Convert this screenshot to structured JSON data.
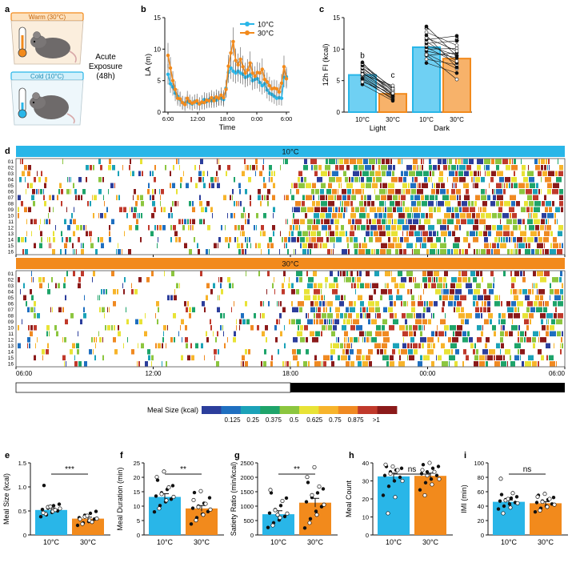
{
  "colors": {
    "cold": "#29b6e8",
    "warm": "#f28a1c",
    "cold_light": "#6fd0f3",
    "warm_light": "#f7b26a",
    "raster_bar_cold": "#29b6e8",
    "raster_bar_warm": "#f28a1c"
  },
  "panels": {
    "a": "a",
    "b": "b",
    "c": "c",
    "d": "d",
    "e": "e",
    "f": "f",
    "g": "g",
    "h": "h",
    "i": "i"
  },
  "panel_a": {
    "warm_label": "Warm (30°C)",
    "cold_label": "Cold (10°C)",
    "exposure_line1": "Acute",
    "exposure_line2": "Exposure",
    "exposure_line3": "(48h)"
  },
  "chart_data": [
    {
      "id": "b",
      "type": "line",
      "xlabel": "Time",
      "ylabel": "LA (m)",
      "ylim": [
        0,
        15
      ],
      "yticks": [
        "0",
        "5",
        "10",
        "15"
      ],
      "xticks": [
        "6:00",
        "12:00",
        "18:00",
        "0:00",
        "6:00"
      ],
      "legend": [
        "10°C",
        "30°C"
      ],
      "series": [
        {
          "name": "10°C",
          "color": "#29b6e8",
          "values": [
            6,
            4.5,
            4,
            3,
            2.5,
            2,
            1.5,
            1.4,
            1.7,
            1.5,
            1.3,
            1.7,
            1.5,
            1.3,
            1.5,
            2,
            1.7,
            2,
            1.8,
            2.1,
            1.9,
            2.2,
            2.2,
            2,
            3.8,
            6.3,
            7,
            6.5,
            6.2,
            6.5,
            6.2,
            6,
            5.5,
            5.7,
            5.9,
            5,
            5.2,
            5.3,
            4.7,
            4.2,
            4.5,
            3.5,
            3,
            2.8,
            2.5,
            2.2,
            2.3,
            2.2,
            5.5,
            5.6
          ]
        },
        {
          "name": "30°C",
          "color": "#f28a1c",
          "values": [
            9,
            7,
            5,
            3.6,
            2.2,
            2.1,
            1.5,
            1.2,
            2.2,
            1.7,
            1.4,
            1.6,
            1.8,
            1.3,
            1.6,
            1.5,
            1.9,
            1.8,
            2.3,
            1.8,
            2.4,
            2.2,
            2.7,
            2.3,
            3.6,
            7.3,
            9.4,
            11.2,
            8.2,
            7.5,
            8.4,
            7.2,
            6.2,
            6.7,
            7.8,
            6.2,
            5.7,
            6.3,
            6.2,
            6.8,
            5.2,
            4.8,
            4.2,
            3.7,
            3.8,
            3.7,
            3.2,
            4.6,
            7.2,
            5.3
          ]
        }
      ]
    },
    {
      "id": "c",
      "type": "bar",
      "ylabel": "12h FI (kcal)",
      "ylim": [
        0,
        15
      ],
      "yticks": [
        "0",
        "5",
        "10",
        "15"
      ],
      "groups": [
        "Light",
        "Dark"
      ],
      "categories": [
        "10°C",
        "30°C",
        "10°C",
        "30°C"
      ],
      "values": [
        5.9,
        2.9,
        10.3,
        8.5
      ],
      "errors": [
        0.4,
        0.3,
        0.5,
        0.5
      ],
      "letters": [
        "b",
        "c",
        "a",
        "a"
      ],
      "light_pairs": [
        [
          4.4,
          1.8
        ],
        [
          5.0,
          2.2
        ],
        [
          5.4,
          2.6
        ],
        [
          5.7,
          2.4
        ],
        [
          5.9,
          2.9
        ],
        [
          6.2,
          3.1
        ],
        [
          6.4,
          2.8
        ],
        [
          6.6,
          3.4
        ],
        [
          6.9,
          3.6
        ],
        [
          7.1,
          3.3
        ],
        [
          7.4,
          3.9
        ],
        [
          7.7,
          3.7
        ],
        [
          5.3,
          2.0
        ],
        [
          6.0,
          4.2
        ],
        [
          7.9,
          2.5
        ],
        [
          4.8,
          3.0
        ]
      ],
      "dark_pairs": [
        [
          7.8,
          6.2
        ],
        [
          8.4,
          7.5
        ],
        [
          9.0,
          9.4
        ],
        [
          9.3,
          6.9
        ],
        [
          9.7,
          8.6
        ],
        [
          10.0,
          10.1
        ],
        [
          10.3,
          7.8
        ],
        [
          10.6,
          9.0
        ],
        [
          10.9,
          11.3
        ],
        [
          11.2,
          8.1
        ],
        [
          11.5,
          12.1
        ],
        [
          11.8,
          9.7
        ],
        [
          12.2,
          7.1
        ],
        [
          12.7,
          10.6
        ],
        [
          13.6,
          8.9
        ],
        [
          9.1,
          5.2
        ]
      ]
    },
    {
      "id": "d",
      "type": "heatmap",
      "blocks": [
        {
          "label": "10°C",
          "color": "#29b6e8",
          "seed": 11,
          "density": 0.55
        },
        {
          "label": "30°C",
          "color": "#f28a1c",
          "seed": 29,
          "density": 0.42
        }
      ],
      "rows": [
        "01",
        "02",
        "03",
        "04",
        "05",
        "06",
        "07",
        "08",
        "09",
        "10",
        "11",
        "12",
        "13",
        "14",
        "15",
        "16"
      ],
      "xticks": [
        "06:00",
        "12:00",
        "18:00",
        "00:00",
        "06:00"
      ],
      "colorbar_title": "Meal Size (kcal)",
      "colorbar_ticks": [
        "0.125",
        "0.25",
        "0.375",
        "0.5",
        "0.625",
        "0.75",
        "0.875",
        ">1"
      ],
      "colorbar_colors": [
        "#2c3e9c",
        "#1f6fc0",
        "#1ba2b8",
        "#1ea46a",
        "#8cc63f",
        "#e8e336",
        "#f7b42b",
        "#f08a22",
        "#c0392b",
        "#8b1a1a"
      ]
    },
    {
      "id": "e",
      "type": "bar",
      "ylabel": "Meal Size (kcal)",
      "ylim": [
        0,
        1.5
      ],
      "yticks": [
        "0",
        "0.5",
        "1.0",
        "1.5"
      ],
      "categories": [
        "10°C",
        "30°C"
      ],
      "values": [
        0.52,
        0.34
      ],
      "errors": [
        0.04,
        0.03
      ],
      "significance": "***",
      "points_filled": [
        [
          0.38,
          0.42,
          0.47,
          0.5,
          0.53,
          0.56,
          0.61,
          0.64,
          1.03
        ],
        [
          0.2,
          0.25,
          0.28,
          0.33,
          0.36,
          0.41,
          0.45,
          0.49
        ]
      ],
      "points_open": [
        [
          0.44,
          0.49,
          0.55,
          0.58,
          0.52,
          0.46,
          0.59
        ],
        [
          0.23,
          0.3,
          0.34,
          0.38,
          0.27,
          0.33,
          0.4
        ]
      ]
    },
    {
      "id": "f",
      "type": "bar",
      "ylabel": "Meal Duration (min)",
      "ylim": [
        0,
        25
      ],
      "yticks": [
        "0",
        "5",
        "10",
        "15",
        "20",
        "25"
      ],
      "categories": [
        "10°C",
        "30°C"
      ],
      "values": [
        13.2,
        9.2
      ],
      "errors": [
        1.1,
        1.0
      ],
      "significance": "**",
      "points_filled": [
        [
          8.0,
          10.2,
          11.5,
          12.4,
          13.5,
          14.6,
          15.8,
          17.1,
          19.0
        ],
        [
          3.8,
          6.0,
          7.2,
          8.1,
          9.3,
          10.0,
          11.0,
          12.9,
          14.7
        ]
      ],
      "points_open": [
        [
          9.2,
          12.0,
          13.2,
          14.2,
          16.5,
          20.1,
          22.0
        ],
        [
          5.1,
          7.0,
          8.8,
          9.7,
          10.8,
          12.1,
          15.2
        ]
      ]
    },
    {
      "id": "g",
      "type": "bar",
      "ylabel": "Satiety Ratio (min/kcal)",
      "ylim": [
        0,
        2500
      ],
      "yticks": [
        "0",
        "500",
        "1000",
        "1500",
        "2000",
        "2500"
      ],
      "categories": [
        "10°C",
        "30°C"
      ],
      "values": [
        720,
        1120
      ],
      "errors": [
        120,
        150
      ],
      "significance": "**",
      "points_filled": [
        [
          260,
          420,
          520,
          640,
          760,
          880,
          1020,
          1280,
          1460
        ],
        [
          240,
          560,
          820,
          980,
          1150,
          1300,
          1460,
          1600,
          1820
        ]
      ],
      "points_open": [
        [
          330,
          600,
          740,
          860,
          1180,
          1560,
          700
        ],
        [
          420,
          700,
          1050,
          1380,
          1680,
          2010,
          2350
        ]
      ]
    },
    {
      "id": "h",
      "type": "bar",
      "ylabel": "Meal Count",
      "ylim": [
        0,
        40
      ],
      "yticks": [
        "0",
        "10",
        "20",
        "30",
        "40"
      ],
      "categories": [
        "10°C",
        "30°C"
      ],
      "values": [
        32.5,
        32.8
      ],
      "errors": [
        1.8,
        1.5
      ],
      "significance": "ns",
      "points_filled": [
        [
          22,
          27,
          30,
          32,
          33,
          35,
          36,
          37,
          38
        ],
        [
          25,
          29,
          31,
          33,
          34,
          35,
          37,
          38,
          39
        ]
      ],
      "points_open": [
        [
          12,
          21,
          30,
          34,
          36,
          39,
          38
        ],
        [
          22,
          28,
          31,
          33,
          35,
          36,
          40
        ]
      ]
    },
    {
      "id": "i",
      "type": "bar",
      "ylabel": "IMI (min)",
      "ylim": [
        0,
        100
      ],
      "yticks": [
        "0",
        "20",
        "40",
        "60",
        "80",
        "100"
      ],
      "categories": [
        "10°C",
        "30°C"
      ],
      "values": [
        46,
        44
      ],
      "errors": [
        2.5,
        2.3
      ],
      "significance": "ns",
      "points_filled": [
        [
          36,
          40,
          43,
          45,
          47,
          49,
          51,
          53,
          56
        ],
        [
          32,
          37,
          40,
          43,
          45,
          47,
          49,
          52,
          55
        ]
      ],
      "points_open": [
        [
          30,
          38,
          44,
          48,
          58,
          78,
          50
        ],
        [
          34,
          39,
          42,
          46,
          50,
          53,
          57
        ]
      ]
    }
  ]
}
